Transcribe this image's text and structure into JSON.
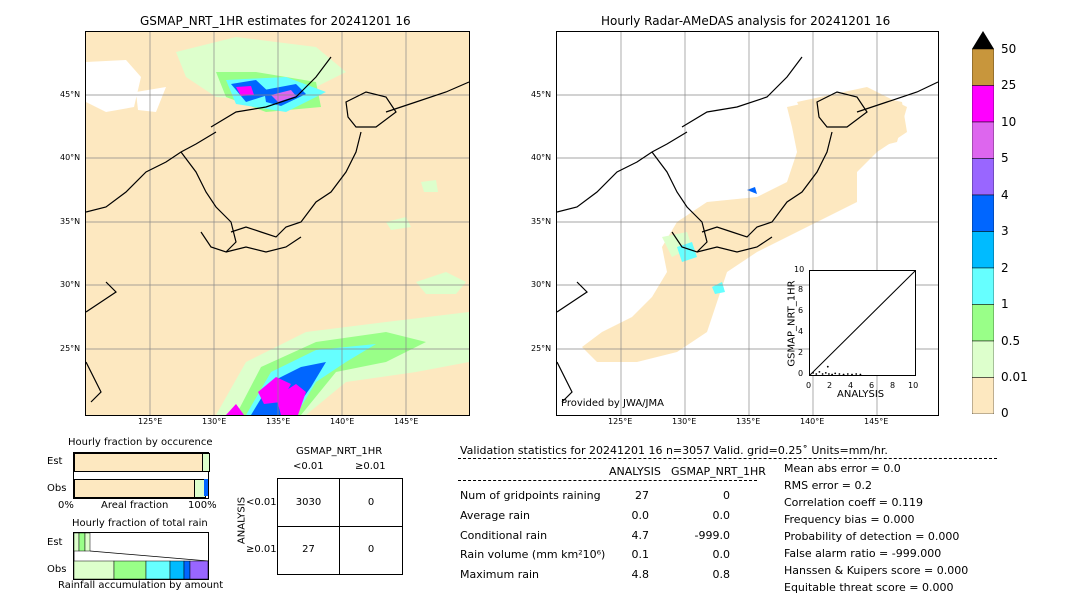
{
  "left_map": {
    "title": "GSMAP_NRT_1HR estimates for 20241201 16",
    "lat_labels": [
      "45°N",
      "40°N",
      "35°N",
      "30°N",
      "25°N"
    ],
    "lon_labels": [
      "125°E",
      "130°E",
      "135°E",
      "140°E",
      "145°E"
    ]
  },
  "right_map": {
    "title": "Hourly Radar-AMeDAS analysis for 20241201 16",
    "lat_labels": [
      "45°N",
      "40°N",
      "35°N",
      "30°N",
      "25°N"
    ],
    "lon_labels": [
      "125°E",
      "130°E",
      "135°E",
      "140°E",
      "145°E"
    ],
    "credit": "Provided by JWA/JMA"
  },
  "scatter_inset": {
    "xlabel": "ANALYSIS",
    "ylabel": "GSMAP_NRT_1HR",
    "ticks": [
      "0",
      "2",
      "4",
      "6",
      "8",
      "10"
    ],
    "ytick_labels": [
      "0",
      "2",
      "4",
      "6",
      "8",
      "10"
    ]
  },
  "colorbar": {
    "labels": [
      "50",
      "25",
      "10",
      "5",
      "4",
      "3",
      "2",
      "1",
      "0.5",
      "0.01",
      "0"
    ],
    "colors": [
      "#c8963c",
      "#ff00ff",
      "#dd66ee",
      "#9966ff",
      "#0066ff",
      "#00bbff",
      "#66ffff",
      "#99ff88",
      "#ddffcc",
      "#fde8c0"
    ]
  },
  "occurrence": {
    "title": "Hourly fraction by occurence",
    "rows": [
      "Est",
      "Obs"
    ],
    "xlabel_left": "0%",
    "xlabel_mid": "Areal fraction",
    "xlabel_right": "100%"
  },
  "total_rain": {
    "title": "Hourly fraction of total rain",
    "rows": [
      "Est",
      "Obs"
    ],
    "xlabel": "Rainfall accumulation by amount"
  },
  "contingency": {
    "col_header": "GSMAP_NRT_1HR",
    "col_labels": [
      "<0.01",
      "≥0.01"
    ],
    "row_header": "ANALYSIS",
    "row_labels": [
      "<0.01",
      "≥0.01"
    ],
    "cells": [
      [
        "3030",
        "0"
      ],
      [
        "27",
        "0"
      ]
    ]
  },
  "validation": {
    "header": "Validation statistics for 20241201 16  n=3057 Valid. grid=0.25˚ Units=mm/hr.",
    "col_analysis": "ANALYSIS",
    "col_gsmap": "GSMAP_NRT_1HR",
    "rows": [
      {
        "label": "Num of gridpoints raining",
        "analysis": "27",
        "gsmap": "0"
      },
      {
        "label": "Average rain",
        "analysis": "0.0",
        "gsmap": "0.0"
      },
      {
        "label": "Conditional rain",
        "analysis": "4.7",
        "gsmap": "-999.0"
      },
      {
        "label": "Rain volume (mm km²10⁶)",
        "analysis": "0.1",
        "gsmap": "0.0"
      },
      {
        "label": "Maximum rain",
        "analysis": "4.8",
        "gsmap": "0.8"
      }
    ],
    "scores": [
      "Mean abs error =    0.0",
      "RMS error =    0.2",
      "Correlation coeff =  0.119",
      "Frequency bias =  0.000",
      "Probability of detection =  0.000",
      "False alarm ratio = -999.000",
      "Hanssen & Kuipers score =  0.000",
      "Equitable threat score =  0.000"
    ]
  },
  "chart_data": {
    "type": "table",
    "contingency_table": [
      [
        3030,
        0
      ],
      [
        27,
        0
      ]
    ],
    "occurrence_fraction": {
      "Est": 0.0,
      "Obs": 0.009
    },
    "statistics": {
      "num_raining": {
        "analysis": 27,
        "gsmap": 0
      },
      "average_rain": {
        "analysis": 0.0,
        "gsmap": 0.0
      },
      "conditional_rain": {
        "analysis": 4.7,
        "gsmap": -999.0
      },
      "rain_volume": {
        "analysis": 0.1,
        "gsmap": 0.0
      },
      "maximum_rain": {
        "analysis": 4.8,
        "gsmap": 0.8
      }
    },
    "scatter_xlim": [
      0,
      10
    ],
    "scatter_ylim": [
      0,
      10
    ]
  }
}
